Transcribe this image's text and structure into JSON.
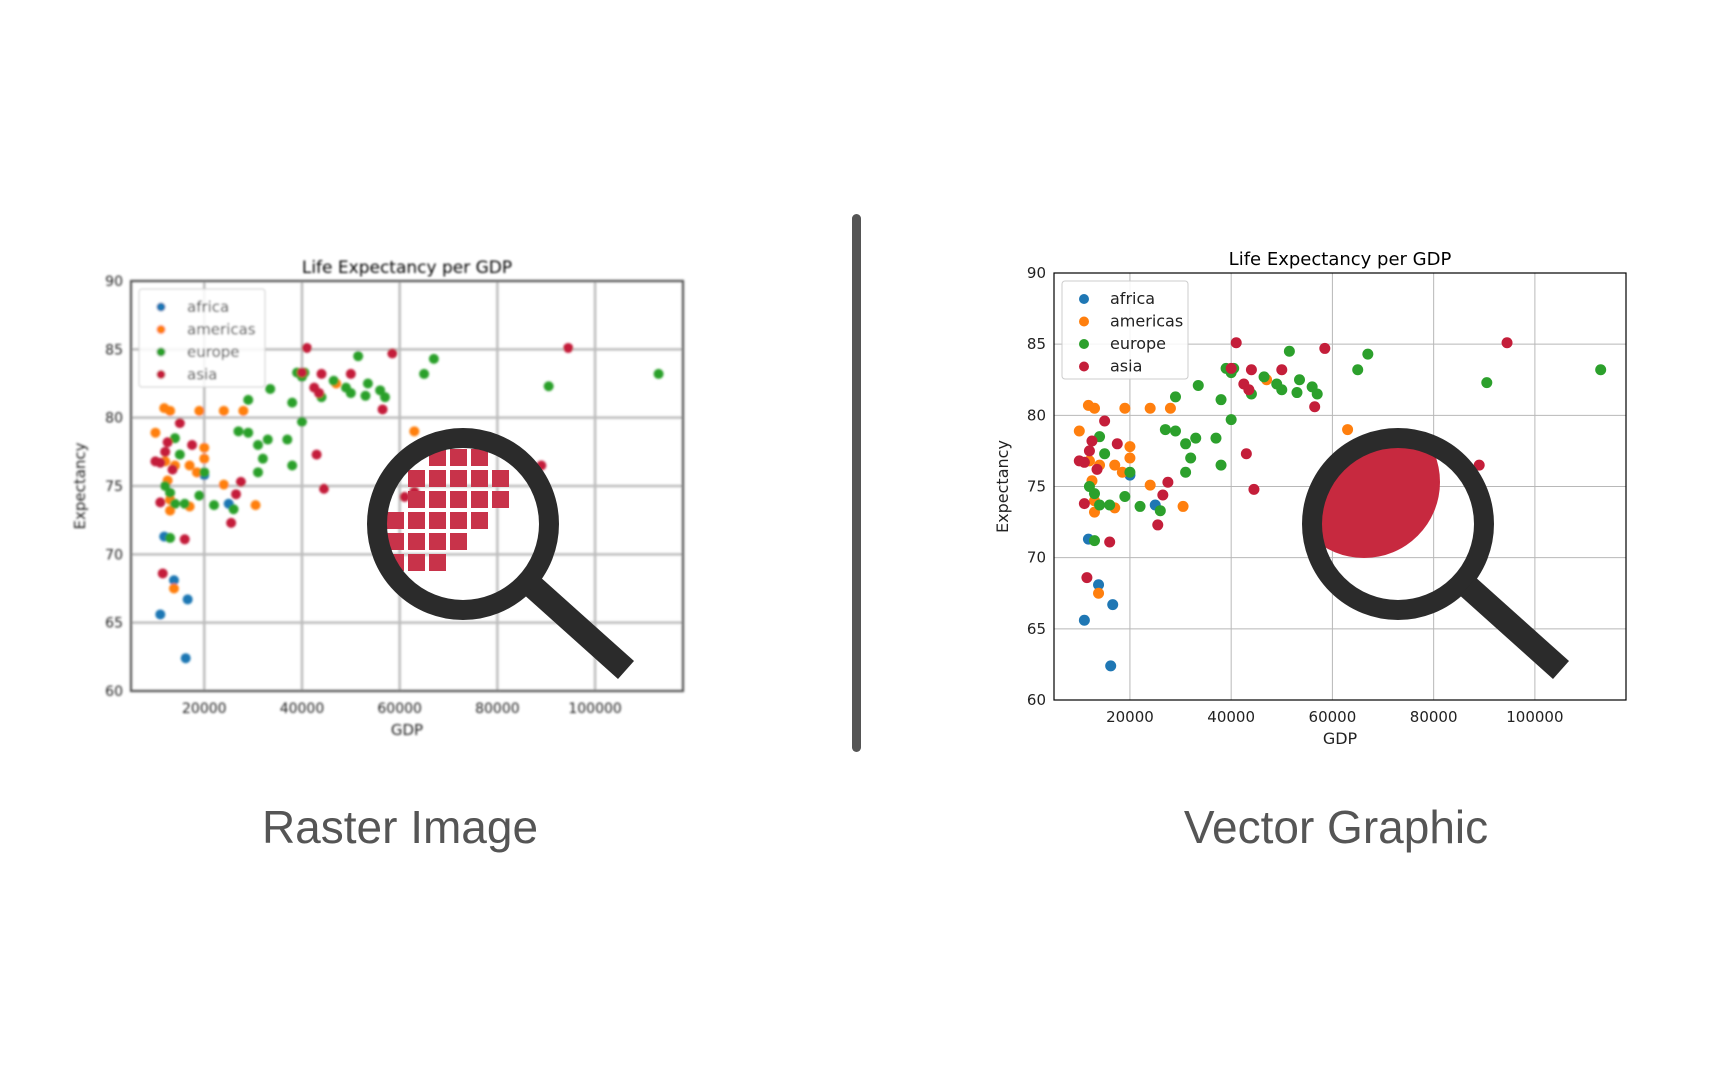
{
  "raster": {
    "caption": "Raster Image",
    "pixel_color": "#c8334a"
  },
  "vector": {
    "caption": "Vector Graphic",
    "zoom_fill_color": "#c7293f"
  },
  "divider_color": "#555555",
  "magnifier_icon": "magnifying-glass-icon",
  "chart_data": [
    {
      "type": "scatter",
      "panel": "raster",
      "title": "Life Expectancy per GDP",
      "xlabel": "GDP",
      "ylabel": "Expectancy",
      "xlim": [
        5000,
        118000
      ],
      "ylim": [
        60,
        90
      ],
      "xticks": [
        20000,
        40000,
        60000,
        80000,
        100000
      ],
      "yticks": [
        60,
        65,
        70,
        75,
        80,
        85,
        90
      ],
      "grid": true,
      "legend_position": "top-left",
      "series": [
        {
          "name": "africa",
          "color": "#1f77b4",
          "points": [
            [
              11800,
              71.3
            ],
            [
              11000,
              65.6
            ],
            [
              13800,
              68.1
            ],
            [
              16600,
              66.7
            ],
            [
              16200,
              62.4
            ],
            [
              25000,
              73.7
            ],
            [
              20000,
              75.8
            ]
          ]
        },
        {
          "name": "americas",
          "color": "#ff7f0e",
          "points": [
            [
              10000,
              78.9
            ],
            [
              11800,
              80.7
            ],
            [
              13000,
              80.5
            ],
            [
              12000,
              76.8
            ],
            [
              12500,
              75.4
            ],
            [
              13000,
              74.0
            ],
            [
              13000,
              73.2
            ],
            [
              14000,
              76.5
            ],
            [
              17000,
              76.5
            ],
            [
              19000,
              80.5
            ],
            [
              20000,
              77.8
            ],
            [
              20000,
              77.0
            ],
            [
              24000,
              80.5
            ],
            [
              28000,
              80.5
            ],
            [
              17000,
              73.5
            ],
            [
              24000,
              75.1
            ],
            [
              30500,
              73.6
            ],
            [
              13800,
              67.5
            ],
            [
              47000,
              82.5
            ],
            [
              63000,
              79.0
            ],
            [
              18500,
              76.0
            ]
          ]
        },
        {
          "name": "europe",
          "color": "#2ca02c",
          "points": [
            [
              12000,
              75.0
            ],
            [
              13000,
              74.5
            ],
            [
              14000,
              78.5
            ],
            [
              15000,
              77.3
            ],
            [
              16000,
              73.7
            ],
            [
              14000,
              73.7
            ],
            [
              13000,
              71.2
            ],
            [
              19000,
              74.3
            ],
            [
              20000,
              76.0
            ],
            [
              22000,
              73.6
            ],
            [
              26000,
              73.3
            ],
            [
              27000,
              79.0
            ],
            [
              29000,
              78.9
            ],
            [
              29000,
              81.3
            ],
            [
              31000,
              78.0
            ],
            [
              31000,
              76.0
            ],
            [
              32000,
              77.0
            ],
            [
              33000,
              78.4
            ],
            [
              33500,
              82.1
            ],
            [
              37000,
              78.4
            ],
            [
              38000,
              81.1
            ],
            [
              38000,
              76.5
            ],
            [
              39000,
              83.3
            ],
            [
              40000,
              83.0
            ],
            [
              40000,
              79.7
            ],
            [
              40500,
              83.3
            ],
            [
              44000,
              81.5
            ],
            [
              46500,
              82.7
            ],
            [
              49000,
              82.2
            ],
            [
              50000,
              81.8
            ],
            [
              51500,
              84.5
            ],
            [
              53000,
              81.6
            ],
            [
              53500,
              82.5
            ],
            [
              56000,
              82.0
            ],
            [
              57000,
              81.5
            ],
            [
              65000,
              83.2
            ],
            [
              67000,
              84.3
            ],
            [
              90500,
              82.3
            ],
            [
              113000,
              83.2
            ]
          ]
        },
        {
          "name": "asia",
          "color": "#c41e3a",
          "points": [
            [
              10000,
              76.8
            ],
            [
              11000,
              76.7
            ],
            [
              11000,
              73.8
            ],
            [
              11500,
              68.6
            ],
            [
              12500,
              78.2
            ],
            [
              12000,
              77.5
            ],
            [
              13500,
              76.2
            ],
            [
              15000,
              79.6
            ],
            [
              16000,
              71.1
            ],
            [
              17500,
              78.0
            ],
            [
              25500,
              72.3
            ],
            [
              26500,
              74.4
            ],
            [
              27500,
              75.3
            ],
            [
              41000,
              85.1
            ],
            [
              40000,
              83.3
            ],
            [
              42500,
              82.2
            ],
            [
              43000,
              77.3
            ],
            [
              43500,
              81.8
            ],
            [
              44000,
              83.2
            ],
            [
              44500,
              74.8
            ],
            [
              50000,
              83.2
            ],
            [
              56500,
              80.6
            ],
            [
              58500,
              84.7
            ],
            [
              61000,
              74.2
            ],
            [
              63000,
              74.6
            ],
            [
              89000,
              76.5
            ],
            [
              94500,
              85.1
            ]
          ]
        }
      ]
    },
    {
      "type": "scatter",
      "panel": "vector",
      "title": "Life Expectancy per GDP",
      "xlabel": "GDP",
      "ylabel": "Expectancy",
      "xlim": [
        5000,
        118000
      ],
      "ylim": [
        60,
        90
      ],
      "xticks": [
        20000,
        40000,
        60000,
        80000,
        100000
      ],
      "yticks": [
        60,
        65,
        70,
        75,
        80,
        85,
        90
      ],
      "grid": true,
      "legend_position": "top-left",
      "series": [
        {
          "name": "africa",
          "color": "#1f77b4",
          "points": [
            [
              11800,
              71.3
            ],
            [
              11000,
              65.6
            ],
            [
              13800,
              68.1
            ],
            [
              16600,
              66.7
            ],
            [
              16200,
              62.4
            ],
            [
              25000,
              73.7
            ],
            [
              20000,
              75.8
            ]
          ]
        },
        {
          "name": "americas",
          "color": "#ff7f0e",
          "points": [
            [
              10000,
              78.9
            ],
            [
              11800,
              80.7
            ],
            [
              13000,
              80.5
            ],
            [
              12000,
              76.8
            ],
            [
              12500,
              75.4
            ],
            [
              13000,
              74.0
            ],
            [
              13000,
              73.2
            ],
            [
              14000,
              76.5
            ],
            [
              17000,
              76.5
            ],
            [
              19000,
              80.5
            ],
            [
              20000,
              77.8
            ],
            [
              20000,
              77.0
            ],
            [
              24000,
              80.5
            ],
            [
              28000,
              80.5
            ],
            [
              17000,
              73.5
            ],
            [
              24000,
              75.1
            ],
            [
              30500,
              73.6
            ],
            [
              13800,
              67.5
            ],
            [
              47000,
              82.5
            ],
            [
              63000,
              79.0
            ],
            [
              18500,
              76.0
            ]
          ]
        },
        {
          "name": "europe",
          "color": "#2ca02c",
          "points": [
            [
              12000,
              75.0
            ],
            [
              13000,
              74.5
            ],
            [
              14000,
              78.5
            ],
            [
              15000,
              77.3
            ],
            [
              16000,
              73.7
            ],
            [
              14000,
              73.7
            ],
            [
              13000,
              71.2
            ],
            [
              19000,
              74.3
            ],
            [
              20000,
              76.0
            ],
            [
              22000,
              73.6
            ],
            [
              26000,
              73.3
            ],
            [
              27000,
              79.0
            ],
            [
              29000,
              78.9
            ],
            [
              29000,
              81.3
            ],
            [
              31000,
              78.0
            ],
            [
              31000,
              76.0
            ],
            [
              32000,
              77.0
            ],
            [
              33000,
              78.4
            ],
            [
              33500,
              82.1
            ],
            [
              37000,
              78.4
            ],
            [
              38000,
              81.1
            ],
            [
              38000,
              76.5
            ],
            [
              39000,
              83.3
            ],
            [
              40000,
              83.0
            ],
            [
              40000,
              79.7
            ],
            [
              40500,
              83.3
            ],
            [
              44000,
              81.5
            ],
            [
              46500,
              82.7
            ],
            [
              49000,
              82.2
            ],
            [
              50000,
              81.8
            ],
            [
              51500,
              84.5
            ],
            [
              53000,
              81.6
            ],
            [
              53500,
              82.5
            ],
            [
              56000,
              82.0
            ],
            [
              57000,
              81.5
            ],
            [
              65000,
              83.2
            ],
            [
              67000,
              84.3
            ],
            [
              90500,
              82.3
            ],
            [
              113000,
              83.2
            ]
          ]
        },
        {
          "name": "asia",
          "color": "#c41e3a",
          "points": [
            [
              10000,
              76.8
            ],
            [
              11000,
              76.7
            ],
            [
              11000,
              73.8
            ],
            [
              11500,
              68.6
            ],
            [
              12500,
              78.2
            ],
            [
              12000,
              77.5
            ],
            [
              13500,
              76.2
            ],
            [
              15000,
              79.6
            ],
            [
              16000,
              71.1
            ],
            [
              17500,
              78.0
            ],
            [
              25500,
              72.3
            ],
            [
              26500,
              74.4
            ],
            [
              27500,
              75.3
            ],
            [
              41000,
              85.1
            ],
            [
              40000,
              83.3
            ],
            [
              42500,
              82.2
            ],
            [
              43000,
              77.3
            ],
            [
              43500,
              81.8
            ],
            [
              44000,
              83.2
            ],
            [
              44500,
              74.8
            ],
            [
              50000,
              83.2
            ],
            [
              56500,
              80.6
            ],
            [
              58500,
              84.7
            ],
            [
              61000,
              74.2
            ],
            [
              63000,
              74.6
            ],
            [
              89000,
              76.5
            ],
            [
              94500,
              85.1
            ]
          ]
        }
      ]
    }
  ]
}
